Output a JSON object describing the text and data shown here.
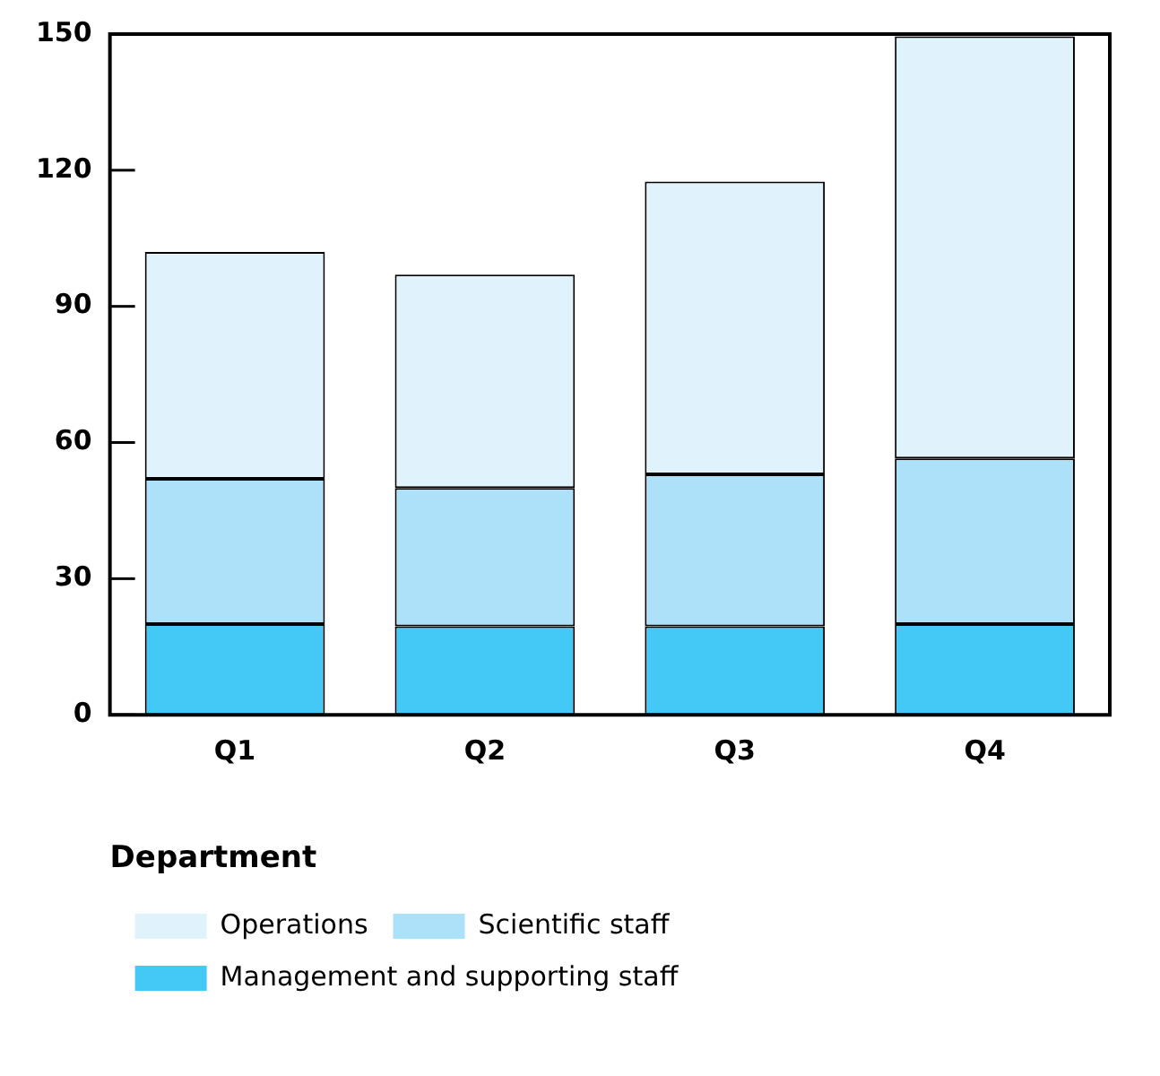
{
  "chart_data": {
    "type": "bar",
    "stacked": true,
    "categories": [
      "Q1",
      "Q2",
      "Q3",
      "Q4"
    ],
    "series": [
      {
        "name": "Management and supporting staff",
        "color": "#44c8f5",
        "values": [
          20,
          19.5,
          19.5,
          20
        ]
      },
      {
        "name": "Scientific staff",
        "color": "#ade1fa",
        "values": [
          32,
          30.5,
          33.5,
          36.5
        ]
      },
      {
        "name": "Operations",
        "color": "#e0f2fc",
        "values": [
          50,
          47,
          64.5,
          93
        ]
      }
    ],
    "ylim": [
      0,
      150
    ],
    "yticks": [
      0,
      30,
      60,
      90,
      120,
      150
    ],
    "grid": false,
    "legend": "bottom left",
    "legend_title": "Department"
  }
}
